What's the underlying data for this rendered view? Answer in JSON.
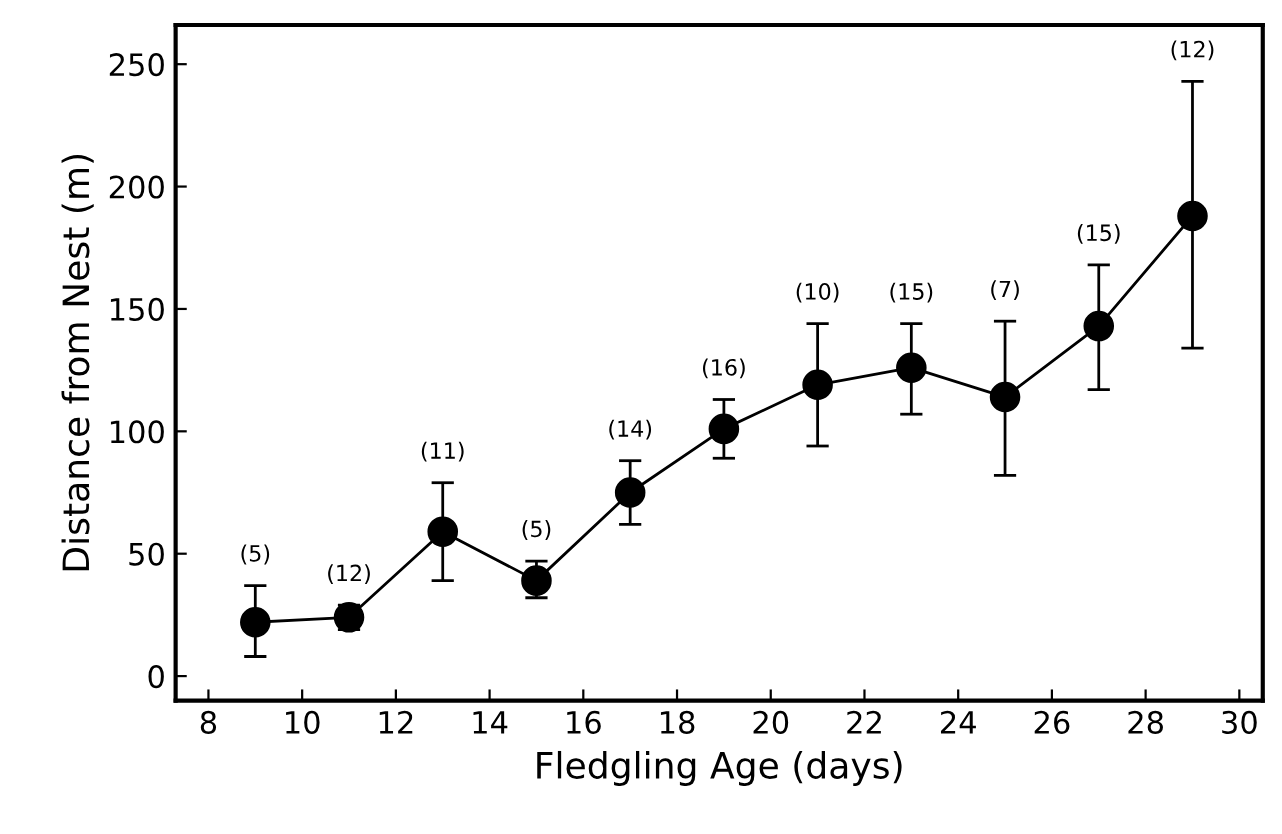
{
  "chart_data": {
    "type": "line",
    "xlabel": "Fledgling Age (days)",
    "ylabel": "Distance from Nest (m)",
    "x": [
      9,
      11,
      13,
      15,
      17,
      19,
      21,
      23,
      25,
      27,
      29
    ],
    "series": [
      {
        "color": "#000000",
        "values": [
          22,
          24,
          59,
          39,
          75,
          101,
          119,
          126,
          114,
          143,
          188
        ],
        "errors": [
          [
            8,
            37
          ],
          [
            19,
            29
          ],
          [
            39,
            79
          ],
          [
            32,
            47
          ],
          [
            62,
            88
          ],
          [
            89,
            113
          ],
          [
            94,
            144
          ],
          [
            107,
            144
          ],
          [
            82,
            145
          ],
          [
            117,
            168
          ],
          [
            134,
            243
          ]
        ]
      }
    ],
    "marker": "circle",
    "line_style": "solid",
    "xlim": [
      7.3,
      30.5
    ],
    "xticks": [
      8,
      10,
      12,
      14,
      16,
      18,
      20,
      22,
      24,
      26,
      28,
      30
    ],
    "ylim": [
      -10,
      266
    ],
    "yticks": [
      0,
      50,
      100,
      150,
      200,
      250
    ],
    "annotations": [
      {
        "text": "(5)",
        "x": 9,
        "y": 37
      },
      {
        "text": "(12)",
        "x": 11,
        "y": 29
      },
      {
        "text": "(11)",
        "x": 13,
        "y": 79
      },
      {
        "text": "(5)",
        "x": 15,
        "y": 47
      },
      {
        "text": "(14)",
        "x": 17,
        "y": 88
      },
      {
        "text": "(16)",
        "x": 19,
        "y": 113
      },
      {
        "text": "(10)",
        "x": 21,
        "y": 144
      },
      {
        "text": "(15)",
        "x": 23,
        "y": 144
      },
      {
        "text": "(7)",
        "x": 25,
        "y": 145
      },
      {
        "text": "(15)",
        "x": 27,
        "y": 168
      },
      {
        "text": "(12)",
        "x": 29,
        "y": 243
      }
    ]
  }
}
